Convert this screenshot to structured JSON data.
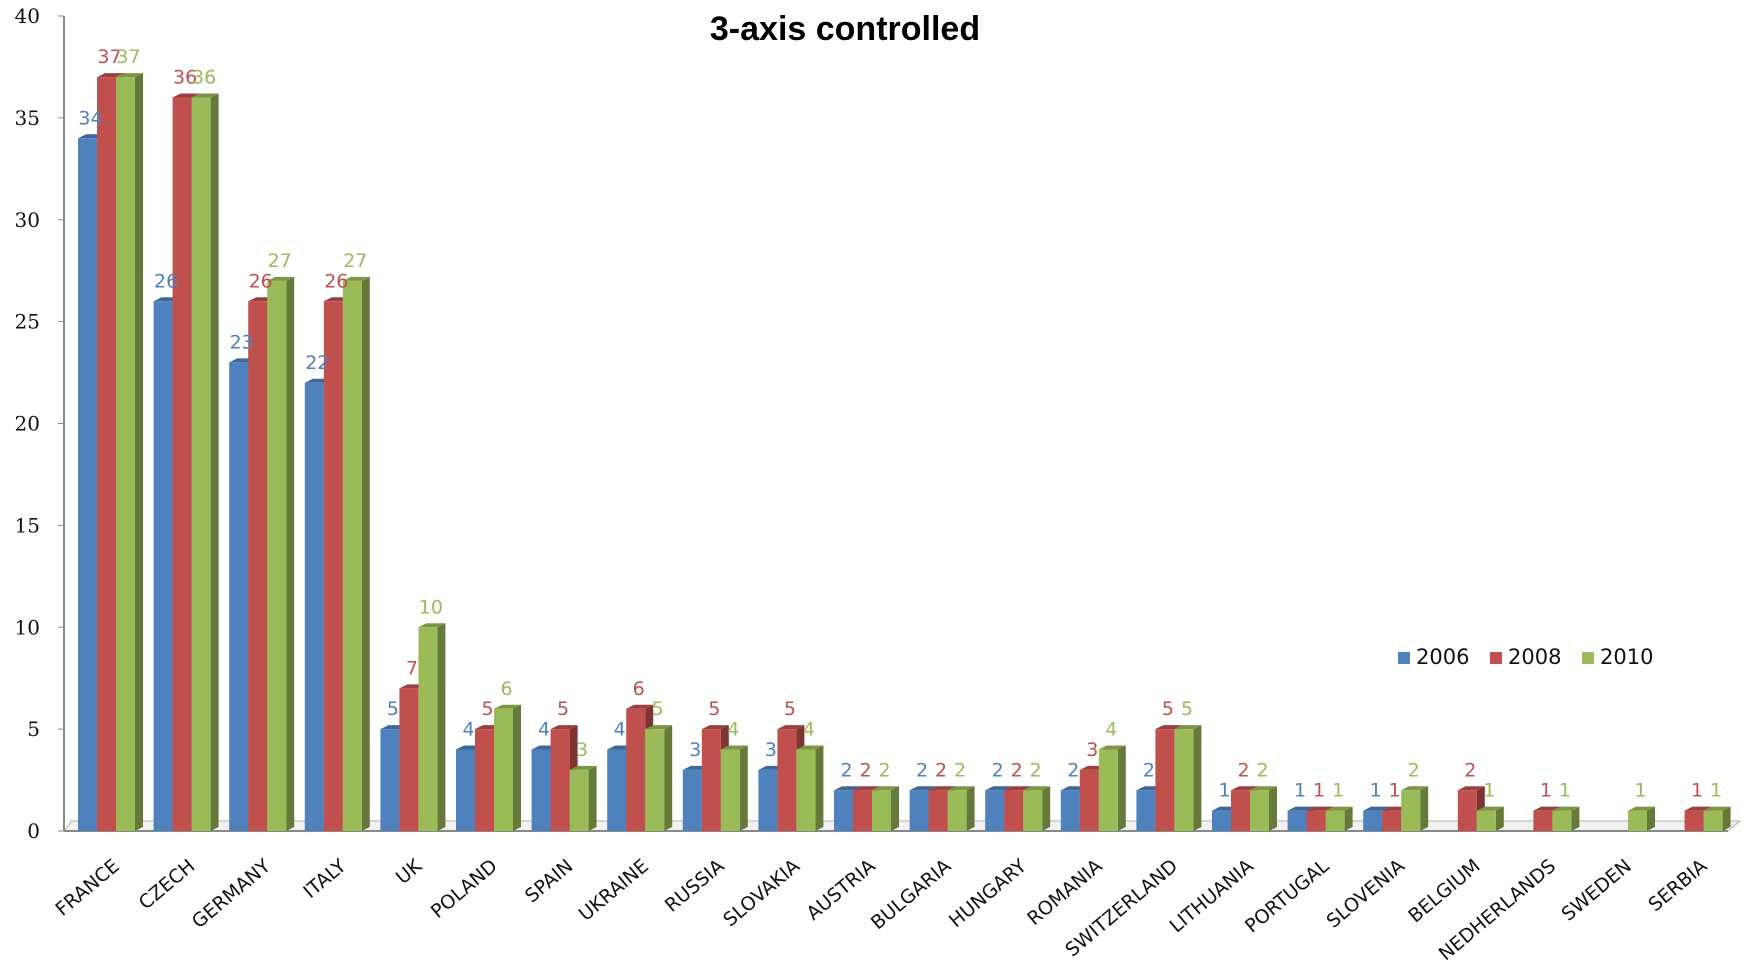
{
  "chart_data": {
    "type": "bar",
    "title": "3-axis controlled",
    "xlabel": "",
    "ylabel": "",
    "ylim": [
      0,
      40
    ],
    "yticks": [
      "0",
      "5",
      "10",
      "15",
      "20",
      "25",
      "30",
      "35",
      "40"
    ],
    "grid": false,
    "legend_position": "right",
    "categories": [
      "FRANCE",
      "CZECH",
      "GERMANY",
      "ITALY",
      "UK",
      "POLAND",
      "SPAIN",
      "UKRAINE",
      "RUSSIA",
      "SLOVAKIA",
      "AUSTRIA",
      "BULGARIA",
      "HUNGARY",
      "ROMANIA",
      "SWITZERLAND",
      "LITHUANIA",
      "PORTUGAL",
      "SLOVENIA",
      "BELGIUM",
      "NEDHERLANDS",
      "SWEDEN",
      "SERBIA"
    ],
    "series": [
      {
        "name": "2006",
        "color": "#4f81bd",
        "label_color": "#4f81bd",
        "values": [
          34,
          26,
          23,
          22,
          5,
          4,
          4,
          4,
          3,
          3,
          2,
          2,
          2,
          2,
          2,
          1,
          1,
          1,
          null,
          null,
          null,
          null
        ]
      },
      {
        "name": "2008",
        "color": "#c0504d",
        "label_color": "#c0504d",
        "values": [
          37,
          36,
          26,
          26,
          7,
          5,
          5,
          6,
          5,
          5,
          2,
          2,
          2,
          3,
          5,
          2,
          1,
          1,
          2,
          1,
          null,
          1
        ]
      },
      {
        "name": "2010",
        "color": "#9bbb59",
        "label_color": "#9bbb59",
        "values": [
          37,
          36,
          27,
          27,
          10,
          6,
          3,
          5,
          4,
          4,
          2,
          2,
          2,
          4,
          5,
          2,
          1,
          2,
          1,
          1,
          1,
          1
        ]
      }
    ]
  }
}
